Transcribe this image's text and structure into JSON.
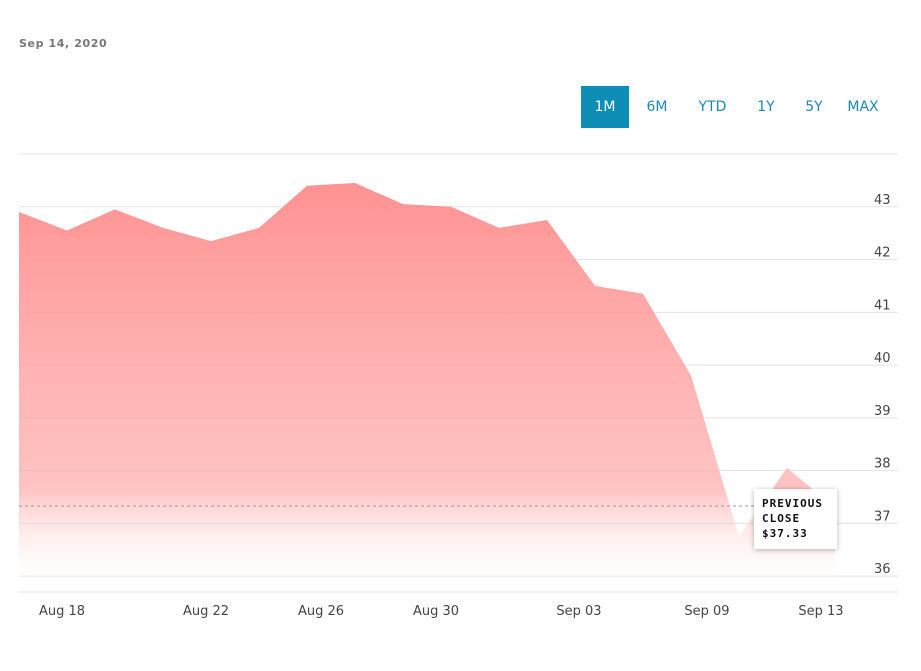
{
  "header": {
    "date": "Sep 14, 2020"
  },
  "range_tabs": [
    {
      "label": "1M",
      "active": true
    },
    {
      "label": "6M",
      "active": false
    },
    {
      "label": "YTD",
      "active": false
    },
    {
      "label": "1Y",
      "active": false
    },
    {
      "label": "5Y",
      "active": false
    },
    {
      "label": "MAX",
      "active": false
    }
  ],
  "tooltip": {
    "line1": "PREVIOUS",
    "line2": "CLOSE",
    "value": "$37.33"
  },
  "colors": {
    "area_top": "#ff8c8c",
    "accent": "#0e8db6",
    "tab_text": "#1a8ab4"
  },
  "chart_data": {
    "type": "area",
    "x_tick_labels": [
      "Aug 18",
      "Aug 22",
      "Aug 26",
      "Aug 30",
      "Sep 03",
      "Sep 09",
      "Sep 13"
    ],
    "y_ticks": [
      36,
      37,
      38,
      39,
      40,
      41,
      42,
      43
    ],
    "ylim": [
      35.7,
      44.0
    ],
    "reference_line": {
      "label": "Previous close",
      "value": 37.33
    },
    "series": [
      {
        "values": [
          42.9,
          42.55,
          42.95,
          42.6,
          42.35,
          42.6,
          43.4,
          43.45,
          43.05,
          43.0,
          42.6,
          42.75,
          41.5,
          41.35,
          39.8,
          36.75,
          38.05,
          37.3
        ]
      }
    ],
    "grid": true
  }
}
